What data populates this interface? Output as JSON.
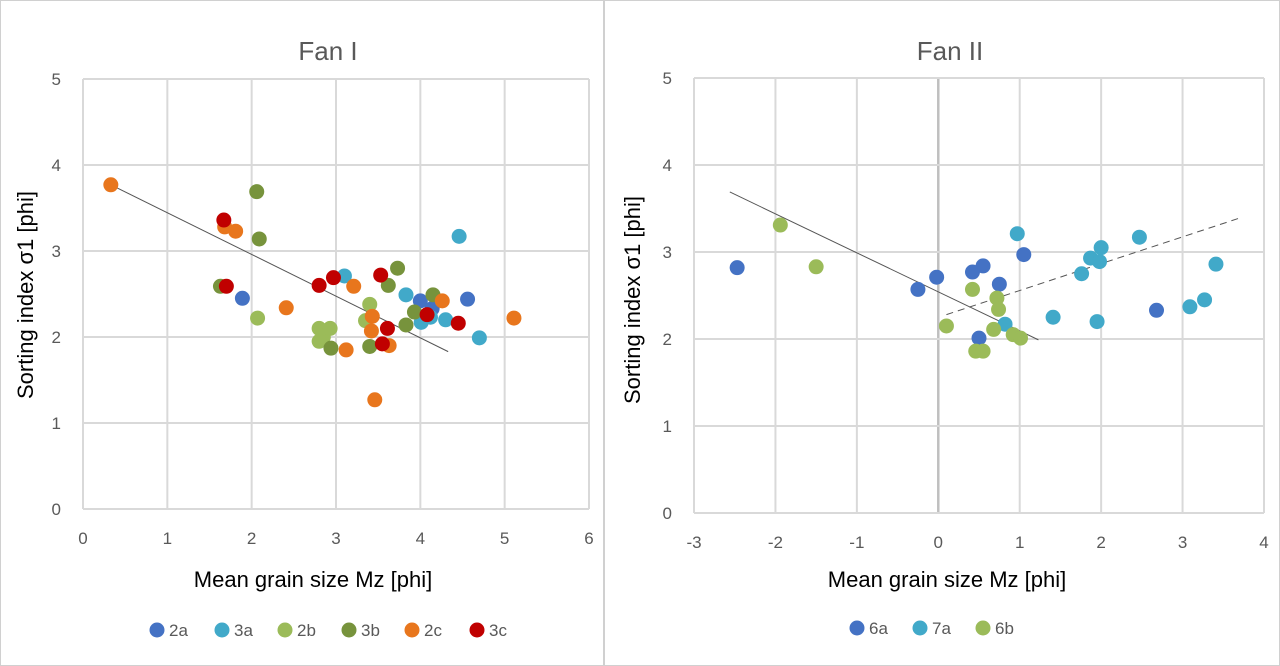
{
  "chart_data": [
    {
      "type": "scatter",
      "title": "Fan I",
      "xlabel": "Mean grain size Mz [phi]",
      "ylabel": "Sorting index σ1 [phi]",
      "xlim": [
        0,
        6
      ],
      "ylim": [
        0,
        5
      ],
      "xticks": [
        "0",
        "1",
        "2",
        "3",
        "4",
        "5",
        "6"
      ],
      "yticks": [
        "0",
        "1",
        "2",
        "3",
        "4",
        "5"
      ],
      "grid": true,
      "legend_position": "bottom",
      "series": [
        {
          "name": "2a",
          "color": "#4472c4",
          "points": [
            [
              1.89,
              2.45
            ],
            [
              4.0,
              2.42
            ],
            [
              4.56,
              2.44
            ],
            [
              4.14,
              2.33
            ]
          ]
        },
        {
          "name": "3a",
          "color": "#41a9c9",
          "points": [
            [
              4.46,
              3.17
            ],
            [
              3.1,
              2.71
            ],
            [
              3.83,
              2.49
            ],
            [
              4.01,
              2.17
            ],
            [
              4.3,
              2.2
            ],
            [
              4.7,
              1.99
            ],
            [
              4.12,
              2.23
            ]
          ]
        },
        {
          "name": "2b",
          "color": "#9bbb59",
          "points": [
            [
              2.07,
              2.22
            ],
            [
              2.8,
              2.1
            ],
            [
              2.85,
              2.0
            ],
            [
              2.93,
              2.1
            ],
            [
              2.8,
              1.95
            ],
            [
              3.4,
              2.38
            ],
            [
              3.35,
              2.19
            ]
          ]
        },
        {
          "name": "3b",
          "color": "#77933c",
          "points": [
            [
              2.06,
              3.69
            ],
            [
              2.09,
              3.14
            ],
            [
              1.63,
              2.59
            ],
            [
              2.94,
              1.87
            ],
            [
              3.73,
              2.8
            ],
            [
              3.62,
              2.6
            ],
            [
              3.4,
              1.89
            ],
            [
              3.83,
              2.14
            ],
            [
              3.93,
              2.29
            ],
            [
              4.15,
              2.49
            ]
          ]
        },
        {
          "name": "2c",
          "color": "#e8761d",
          "points": [
            [
              0.33,
              3.77
            ],
            [
              1.68,
              3.28
            ],
            [
              1.81,
              3.23
            ],
            [
              2.41,
              2.34
            ],
            [
              3.12,
              1.85
            ],
            [
              3.21,
              2.59
            ],
            [
              3.43,
              2.24
            ],
            [
              3.42,
              2.07
            ],
            [
              3.63,
              1.9
            ],
            [
              3.46,
              1.27
            ],
            [
              4.26,
              2.42
            ],
            [
              5.11,
              2.22
            ]
          ]
        },
        {
          "name": "3c",
          "color": "#c00000",
          "points": [
            [
              1.67,
              3.36
            ],
            [
              1.7,
              2.59
            ],
            [
              2.8,
              2.6
            ],
            [
              2.97,
              2.69
            ],
            [
              3.53,
              2.72
            ],
            [
              3.61,
              2.1
            ],
            [
              3.55,
              1.92
            ],
            [
              4.08,
              2.26
            ],
            [
              4.45,
              2.16
            ]
          ]
        }
      ],
      "trendlines": [
        {
          "style": "solid",
          "from": [
            0.33,
            3.77
          ],
          "to": [
            4.33,
            1.83
          ]
        }
      ]
    },
    {
      "type": "scatter",
      "title": "Fan II",
      "xlabel": "Mean grain size Mz [phi]",
      "ylabel": "Sorting index σ1 [phi]",
      "xlim": [
        -3,
        4
      ],
      "ylim": [
        0,
        5
      ],
      "xticks": [
        "-3",
        "-2",
        "-1",
        "0",
        "1",
        "2",
        "3",
        "4"
      ],
      "yticks": [
        "0",
        "1",
        "2",
        "3",
        "4",
        "5"
      ],
      "grid": true,
      "legend_position": "bottom",
      "series": [
        {
          "name": "6a",
          "color": "#4472c4",
          "points": [
            [
              -2.47,
              2.82
            ],
            [
              -0.25,
              2.57
            ],
            [
              -0.02,
              2.71
            ],
            [
              0.42,
              2.77
            ],
            [
              0.55,
              2.84
            ],
            [
              1.05,
              2.97
            ],
            [
              0.75,
              2.63
            ],
            [
              0.5,
              2.01
            ],
            [
              2.68,
              2.33
            ]
          ]
        },
        {
          "name": "7a",
          "color": "#41a9c9",
          "points": [
            [
              1.41,
              2.25
            ],
            [
              1.76,
              2.75
            ],
            [
              1.87,
              2.93
            ],
            [
              2.0,
              3.05
            ],
            [
              1.98,
              2.89
            ],
            [
              1.95,
              2.2
            ],
            [
              2.47,
              3.17
            ],
            [
              3.09,
              2.37
            ],
            [
              3.27,
              2.45
            ],
            [
              3.41,
              2.86
            ],
            [
              0.97,
              3.21
            ],
            [
              0.82,
              2.17
            ]
          ]
        },
        {
          "name": "6b",
          "color": "#9bbb59",
          "points": [
            [
              -1.94,
              3.31
            ],
            [
              -1.5,
              2.83
            ],
            [
              0.42,
              2.57
            ],
            [
              0.72,
              2.47
            ],
            [
              0.74,
              2.34
            ],
            [
              0.1,
              2.15
            ],
            [
              0.68,
              2.11
            ],
            [
              0.92,
              2.05
            ],
            [
              1.01,
              2.01
            ],
            [
              0.46,
              1.86
            ],
            [
              0.55,
              1.86
            ]
          ]
        }
      ],
      "trendlines": [
        {
          "style": "solid",
          "from": [
            -2.56,
            3.69
          ],
          "to": [
            1.23,
            1.99
          ]
        },
        {
          "style": "dashed",
          "from": [
            0.1,
            2.28
          ],
          "to": [
            3.7,
            3.39
          ]
        }
      ]
    }
  ]
}
